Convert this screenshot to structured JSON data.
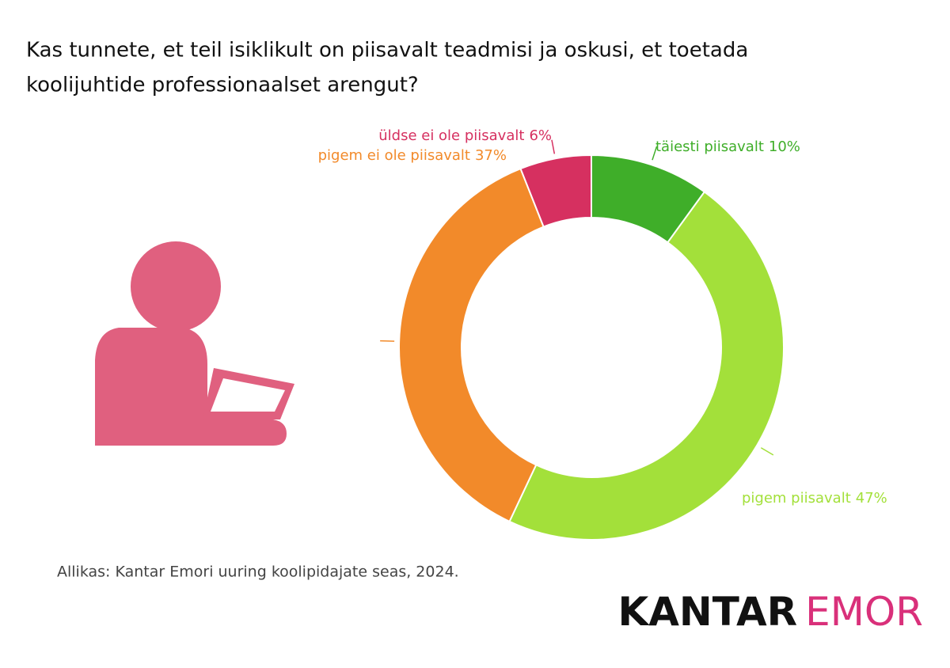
{
  "chart_data": {
    "type": "donut",
    "title": [
      "Kas tunnete, et teil isiklikult on piisavalt teadmisi ja oskusi, et toetada",
      "koolijuhtide professionaalset arengut?"
    ],
    "categories": [
      "täiesti piisavalt",
      "pigem piisavalt",
      "pigem ei ole piisavalt",
      "üldse ei ole piisavalt"
    ],
    "values": [
      10,
      47,
      37,
      6
    ],
    "value_labels": [
      "10%",
      "47%",
      "37%",
      "6%"
    ],
    "colors": [
      "#3fae29",
      "#a3e03a",
      "#f28a2a",
      "#d63060"
    ],
    "source": "Allikas: Kantar Emori uuring koolipidajate seas, 2024.",
    "logo": [
      "KANTAR",
      "EMOR"
    ]
  }
}
